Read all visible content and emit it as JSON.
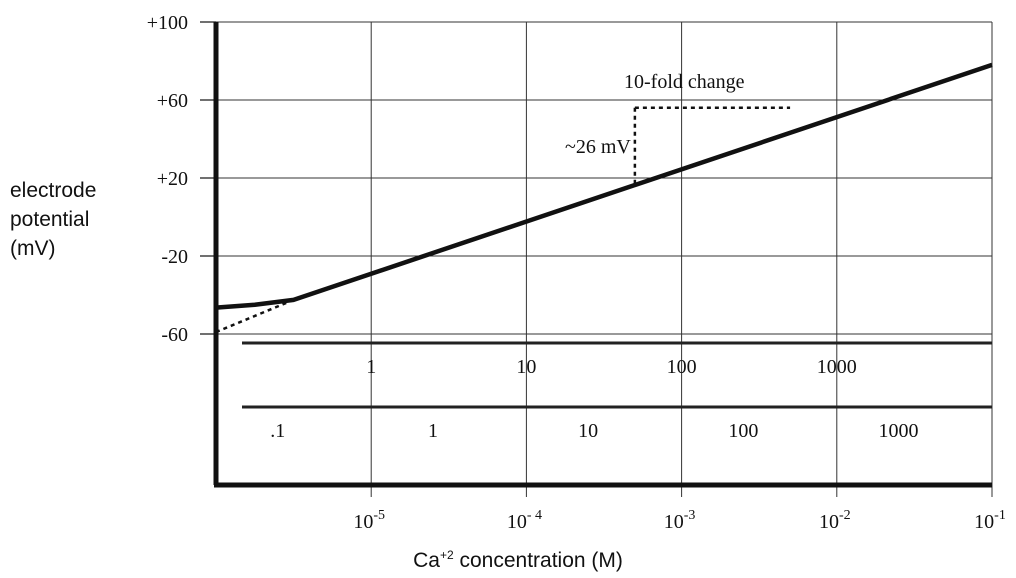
{
  "chart_data": {
    "type": "line",
    "title": "",
    "x_axis": {
      "label_prefix": "Ca",
      "label_sup": "+2",
      "label_suffix": " concentration (M)",
      "scale": "log",
      "ticks": [
        {
          "value": 1e-05,
          "base": "10",
          "exp": "-5"
        },
        {
          "value": 0.0001,
          "base": "10",
          "exp": "- 4"
        },
        {
          "value": 0.001,
          "base": "10",
          "exp": "-3"
        },
        {
          "value": 0.01,
          "base": "10",
          "exp": "-2"
        },
        {
          "value": 0.1,
          "base": "10",
          "exp": "-1"
        }
      ],
      "range": [
        1e-06,
        0.1
      ]
    },
    "y_axis": {
      "label_lines": [
        "electrode",
        "potential",
        "(mV)"
      ],
      "ticks": [
        {
          "value": 100,
          "label": "+100"
        },
        {
          "value": 60,
          "label": "+60"
        },
        {
          "value": 20,
          "label": "+20"
        },
        {
          "value": -20,
          "label": "-20"
        },
        {
          "value": -60,
          "label": "-60"
        }
      ],
      "range": [
        -60,
        100
      ]
    },
    "secondary_scales": [
      {
        "labels": [
          {
            "x": 1e-05,
            "text": "1"
          },
          {
            "x": 0.0001,
            "text": "10"
          },
          {
            "x": 0.001,
            "text": "100"
          },
          {
            "x": 0.01,
            "text": "1000"
          }
        ]
      },
      {
        "labels": [
          {
            "x": 2.5e-06,
            "text": ".1"
          },
          {
            "x": 2.5e-05,
            "text": "1"
          },
          {
            "x": 0.00025,
            "text": "10"
          },
          {
            "x": 0.0025,
            "text": "100"
          },
          {
            "x": 0.025,
            "text": "1000"
          }
        ]
      }
    ],
    "grid": true,
    "series": [
      {
        "style": "solid",
        "points": [
          [
            1e-06,
            -46.5
          ],
          [
            1.78e-06,
            -45
          ],
          [
            3.16e-06,
            -42.5
          ],
          [
            0.1,
            78
          ]
        ]
      },
      {
        "style": "dashed",
        "points": [
          [
            1e-06,
            -59
          ],
          [
            3.16e-06,
            -42.5
          ]
        ]
      }
    ],
    "annotations": {
      "slope_label": "~26 mV",
      "fold_label": "10-fold change",
      "step_corner": {
        "x": 0.0005,
        "y": 56
      },
      "step_vertical_bottom_y": 16,
      "step_horizontal_end_x": 0.005
    }
  }
}
